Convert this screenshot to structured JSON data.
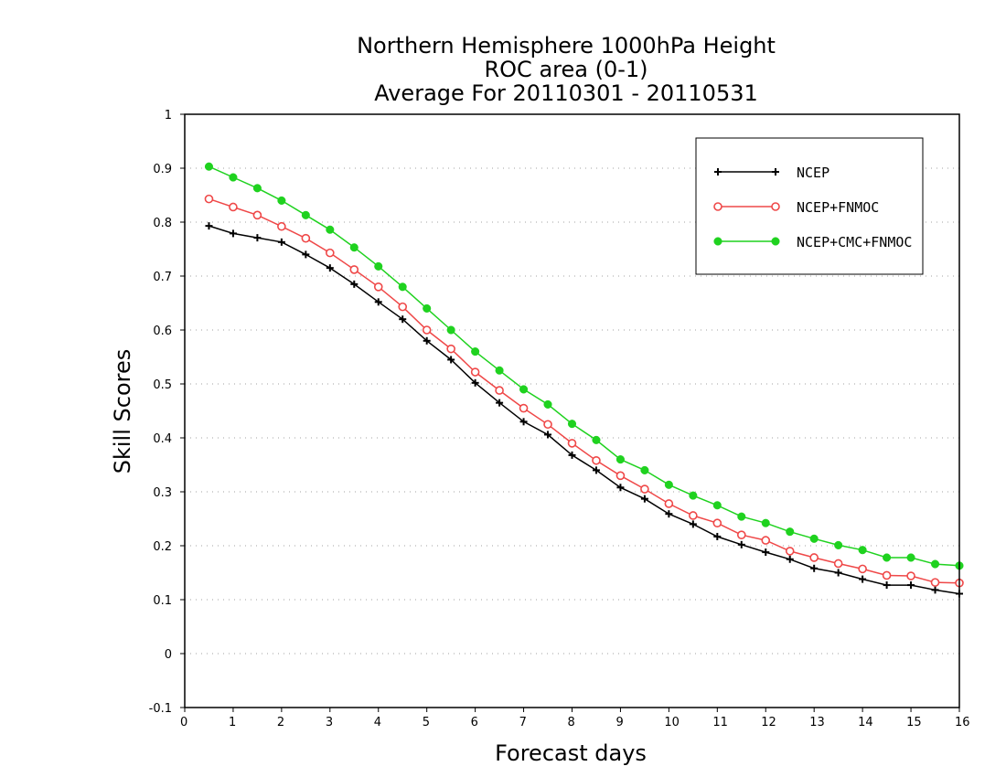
{
  "colors": {
    "NCEP": "#000000",
    "NCEP+FNMOC": "#ef4848",
    "NCEP+CMC+FNMOC": "#1fd21f"
  },
  "chart_data": {
    "type": "line",
    "title_lines": [
      "Northern Hemisphere 1000hPa Height",
      "ROC area (0-1)",
      "Average For 20110301 - 20110531"
    ],
    "xlabel": "Forecast days",
    "ylabel": "Skill Scores",
    "xlim": [
      0,
      16
    ],
    "ylim": [
      -0.1,
      1
    ],
    "xticks": [
      0,
      1,
      2,
      3,
      4,
      5,
      6,
      7,
      8,
      9,
      10,
      11,
      12,
      13,
      14,
      15,
      16
    ],
    "yticks": [
      -0.1,
      0,
      0.1,
      0.2,
      0.3,
      0.4,
      0.5,
      0.6,
      0.7,
      0.8,
      0.9,
      1
    ],
    "ytick_labels": [
      "-0.1",
      "0",
      "0.1",
      "0.2",
      "0.3",
      "0.4",
      "0.5",
      "0.6",
      "0.7",
      "0.8",
      "0.9",
      "1"
    ],
    "grid": true,
    "legend_position": "top-right",
    "x": [
      0.5,
      1,
      1.5,
      2,
      2.5,
      3,
      3.5,
      4,
      4.5,
      5,
      5.5,
      6,
      6.5,
      7,
      7.5,
      8,
      8.5,
      9,
      9.5,
      10,
      10.5,
      11,
      11.5,
      12,
      12.5,
      13,
      13.5,
      14,
      14.5,
      15,
      15.5,
      16
    ],
    "series": [
      {
        "name": "NCEP",
        "marker": "plus",
        "values": [
          0.793,
          0.779,
          0.771,
          0.763,
          0.74,
          0.715,
          0.685,
          0.652,
          0.62,
          0.58,
          0.545,
          0.502,
          0.465,
          0.43,
          0.406,
          0.368,
          0.34,
          0.308,
          0.287,
          0.259,
          0.24,
          0.217,
          0.202,
          0.188,
          0.175,
          0.158,
          0.15,
          0.138,
          0.127,
          0.127,
          0.118,
          0.111
        ]
      },
      {
        "name": "NCEP+FNMOC",
        "marker": "open-circle",
        "values": [
          0.843,
          0.828,
          0.813,
          0.792,
          0.77,
          0.743,
          0.712,
          0.68,
          0.643,
          0.6,
          0.565,
          0.522,
          0.488,
          0.455,
          0.425,
          0.39,
          0.358,
          0.33,
          0.305,
          0.278,
          0.256,
          0.242,
          0.22,
          0.21,
          0.19,
          0.178,
          0.167,
          0.157,
          0.145,
          0.144,
          0.132,
          0.131
        ]
      },
      {
        "name": "NCEP+CMC+FNMOC",
        "marker": "filled-circle",
        "values": [
          0.903,
          0.883,
          0.863,
          0.84,
          0.813,
          0.786,
          0.753,
          0.718,
          0.68,
          0.64,
          0.6,
          0.56,
          0.525,
          0.49,
          0.462,
          0.426,
          0.396,
          0.36,
          0.34,
          0.313,
          0.293,
          0.275,
          0.254,
          0.242,
          0.226,
          0.213,
          0.201,
          0.192,
          0.178,
          0.178,
          0.166,
          0.163
        ]
      }
    ]
  }
}
